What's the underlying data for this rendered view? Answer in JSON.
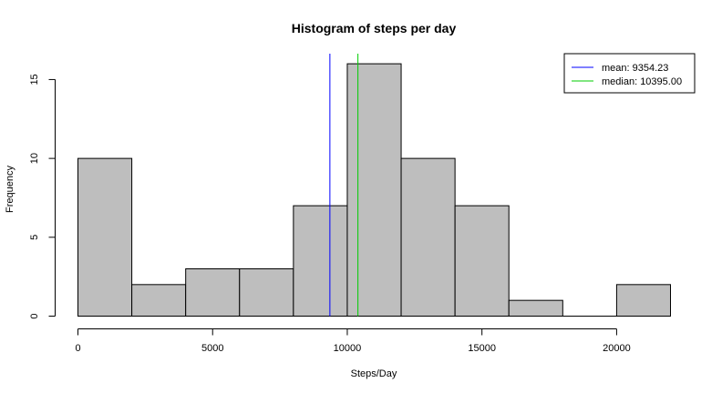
{
  "chart_data": {
    "type": "bar",
    "title": "Histogram of steps per day",
    "xlabel": "Steps/Day",
    "ylabel": "Frequency",
    "bin_edges": [
      0,
      2000,
      4000,
      6000,
      8000,
      10000,
      12000,
      14000,
      16000,
      18000,
      20000,
      22000
    ],
    "values": [
      10,
      2,
      3,
      3,
      7,
      16,
      10,
      7,
      1,
      0,
      2
    ],
    "xlim": [
      0,
      22000
    ],
    "ylim": [
      0,
      16.64
    ],
    "x_ticks": [
      0,
      5000,
      10000,
      15000,
      20000
    ],
    "x_tick_labels": [
      "0",
      "5000",
      "10000",
      "15000",
      "20000"
    ],
    "y_ticks": [
      0,
      5,
      10,
      15
    ],
    "y_tick_labels": [
      "0",
      "5",
      "10",
      "15"
    ],
    "bar_color": "#bebebe",
    "grid": false,
    "reference_lines": [
      {
        "label": "mean: 9354.23",
        "x": 9354.23,
        "color": "#0000ff"
      },
      {
        "label": "median: 10395.00",
        "x": 10395.0,
        "color": "#00cd00"
      }
    ],
    "legend_position": "top-right"
  }
}
